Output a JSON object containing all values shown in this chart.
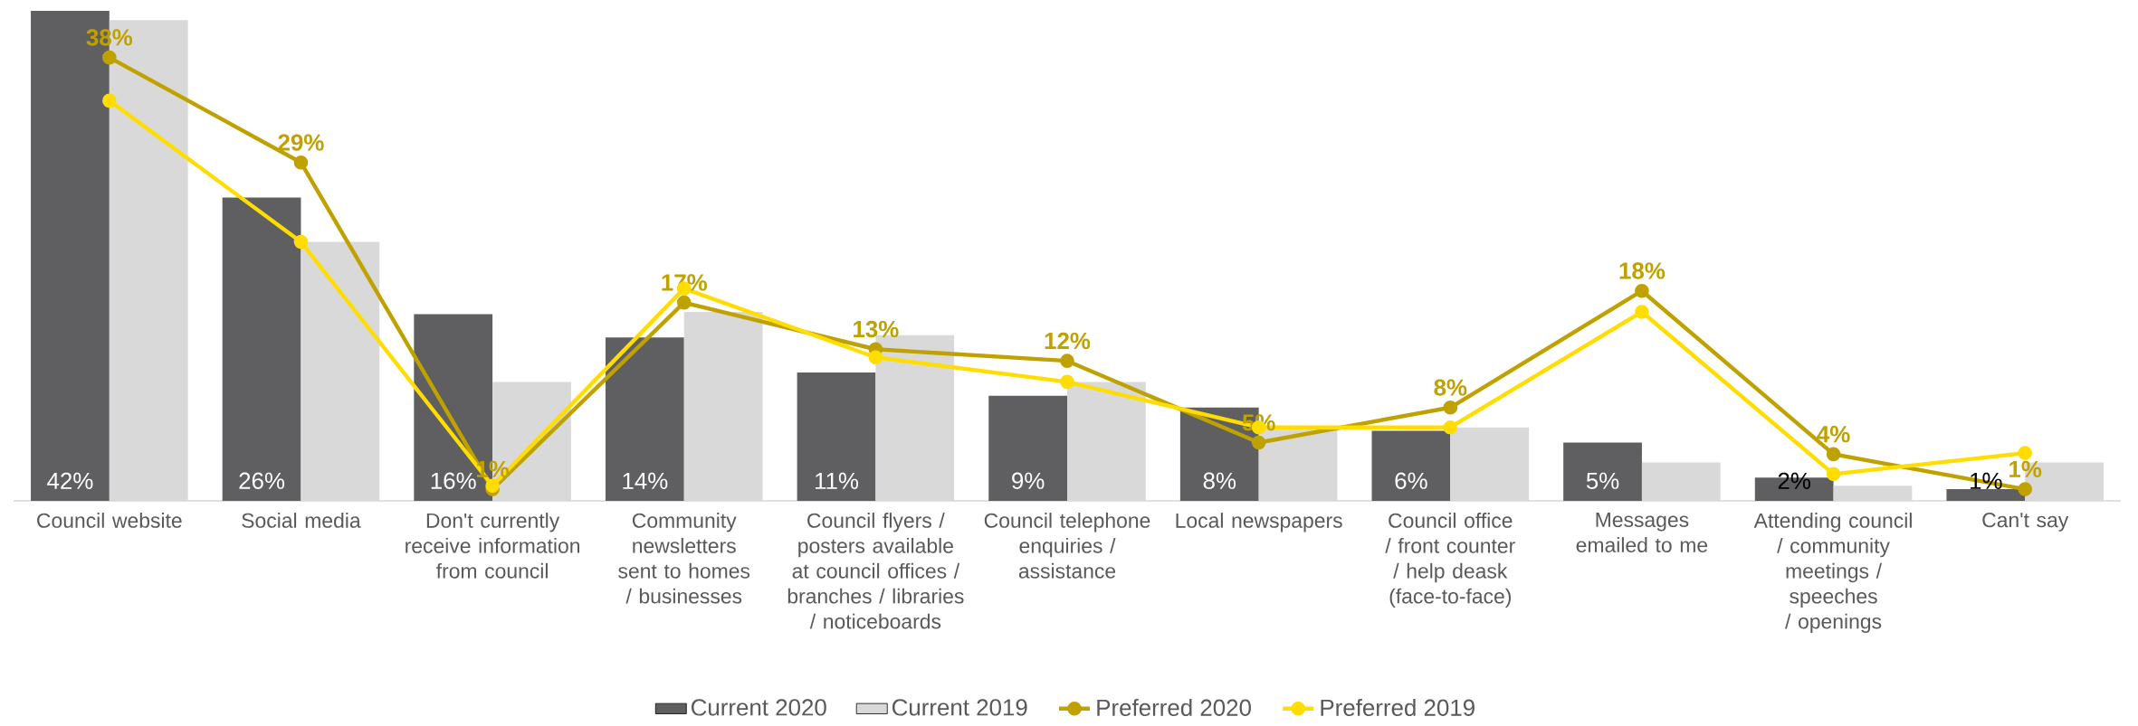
{
  "chart_data": {
    "type": "bar",
    "categories": [
      "Council website",
      "Social media",
      "Don't currently receive information from council",
      "Community newsletters sent to homes / businesses",
      "Council flyers / posters available at council offices / branches / libraries / noticeboards",
      "Council telephone enquiries / assistance",
      "Local newspapers",
      "Council office / front counter / help deask (face-to-face)",
      "Messages emailed to me",
      "Attending council / community meetings / speeches / openings",
      "Can't say"
    ],
    "ylim": [
      0,
      42
    ],
    "legend": "bottom",
    "series": [
      {
        "name": "Current 2020",
        "color": "#5f5f61",
        "values": [
          42,
          26,
          16,
          14,
          11,
          9,
          8,
          6,
          5,
          2,
          1
        ],
        "value_labels": [
          "42%",
          "26%",
          "16%",
          "14%",
          "11%",
          "9%",
          "8%",
          "6%",
          "5%",
          "2%",
          "1%"
        ]
      },
      {
        "name": "Current 2019",
        "color": "#d9d9d9",
        "values": [
          41.2,
          22.2,
          10.2,
          16.2,
          14.2,
          10.2,
          6.3,
          6.3,
          3.3,
          1.3,
          3.3
        ]
      },
      {
        "name": "Preferred 2020",
        "type": "line",
        "marker": "circle",
        "color": "#bfa100",
        "values": [
          38,
          29,
          1,
          17,
          13,
          12,
          5,
          8,
          18,
          4,
          1
        ],
        "value_labels": [
          "38%",
          "29%",
          "1%",
          "17%",
          "13%",
          "12%",
          "5%",
          "8%",
          "18%",
          "4%",
          "1%"
        ]
      },
      {
        "name": "Preferred 2019",
        "type": "line",
        "marker": "circle",
        "color": "#ffdd00",
        "values": [
          34.3,
          22.2,
          1.3,
          18.2,
          12.3,
          10.2,
          6.3,
          6.3,
          16.2,
          2.3,
          4.1
        ]
      }
    ]
  }
}
